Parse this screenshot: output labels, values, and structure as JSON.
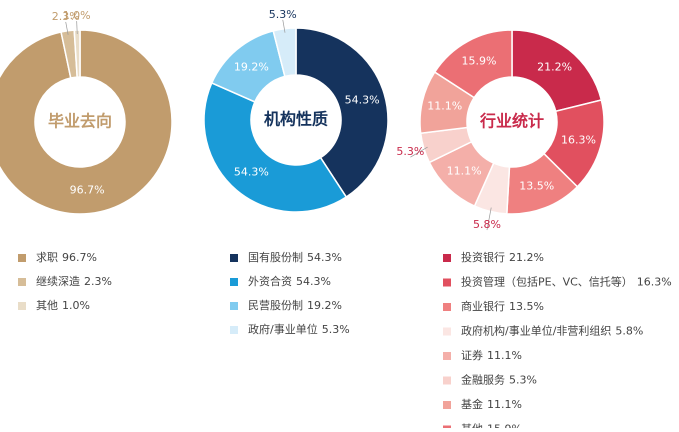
{
  "chart_data": [
    {
      "type": "pie",
      "title": "毕业去向",
      "categories": [
        "求职",
        "继续深造",
        "其他"
      ],
      "values": [
        96.7,
        2.3,
        1.0
      ],
      "value_labels": [
        "96.7%",
        "2.3%",
        "1.0%"
      ],
      "colors": [
        "#c19c6d",
        "#d6bd98",
        "#e9ddc8"
      ],
      "label_color": "#c19c6d"
    },
    {
      "type": "pie",
      "title": "机构性质",
      "categories": [
        "国有股份制",
        "外资合资",
        "民营股份制",
        "政府/事业单位"
      ],
      "values": [
        54.3,
        54.3,
        19.2,
        5.3
      ],
      "value_labels": [
        "54.3%",
        "54.3%",
        "19.2%",
        "5.3%"
      ],
      "colors": [
        "#15335d",
        "#1a9bd7",
        "#80cbef",
        "#d6ecf9"
      ],
      "label_color": "#15335d"
    },
    {
      "type": "pie",
      "title": "行业统计",
      "categories": [
        "投资银行",
        "投资管理（包括PE、VC、信托等）",
        "商业银行",
        "政府机构/事业单位/非营利组织",
        "证券",
        "金融服务",
        "基金",
        "其他"
      ],
      "values": [
        21.2,
        16.3,
        13.5,
        5.8,
        11.1,
        5.3,
        11.1,
        15.9
      ],
      "value_labels": [
        "21.2%",
        "16.3%",
        "13.5%",
        "5.8%",
        "11.1%",
        "5.3%",
        "11.1%",
        "15.9%"
      ],
      "colors": [
        "#c92a4b",
        "#e1505f",
        "#ef8080",
        "#fbe6e3",
        "#f4afa9",
        "#f8d1cc",
        "#f1a39a",
        "#eb6f74"
      ],
      "label_color": "#c92a4b"
    }
  ]
}
